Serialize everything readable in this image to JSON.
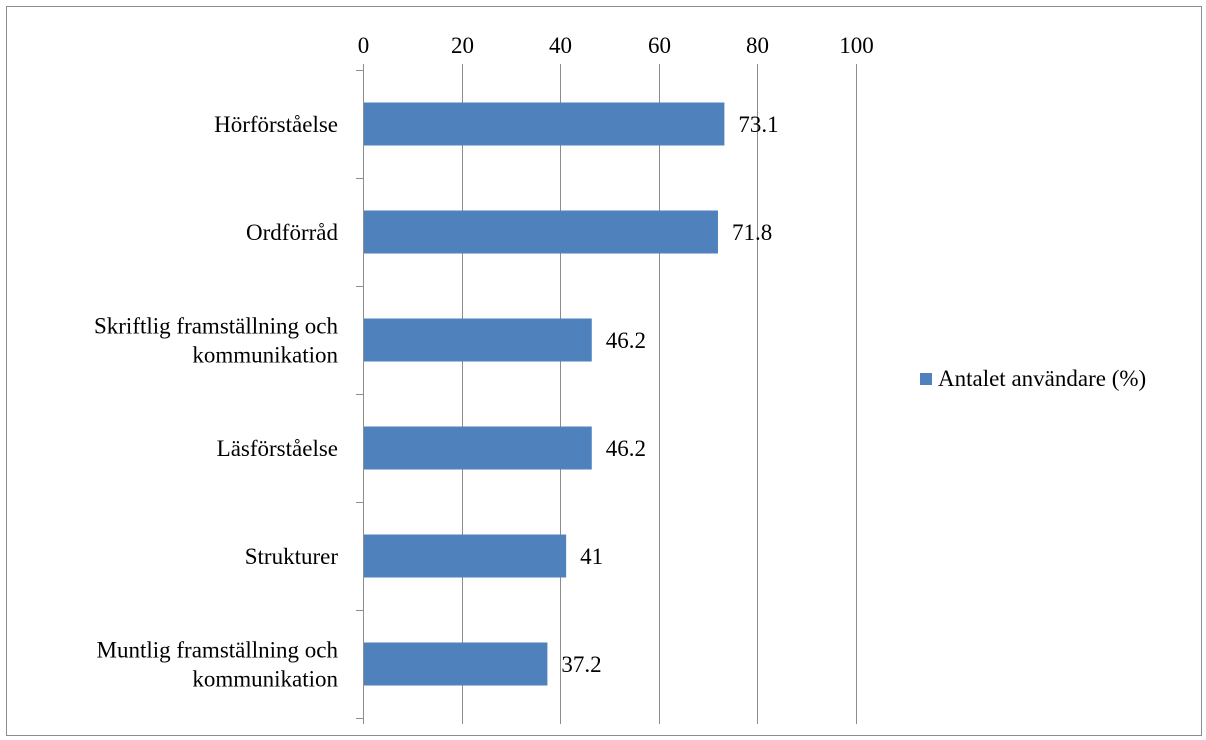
{
  "chart_data": {
    "type": "bar",
    "orientation": "horizontal",
    "categories": [
      "Hörförståelse",
      "Ordförråd",
      "Skriftlig framställning och kommunikation",
      "Läsförståelse",
      "Strukturer",
      "Muntlig framställning och kommunikation"
    ],
    "category_lines": [
      [
        "Hörförståelse"
      ],
      [
        "Ordförråd"
      ],
      [
        "Skriftlig framställning och",
        "kommunikation"
      ],
      [
        "Läsförståelse"
      ],
      [
        "Strukturer"
      ],
      [
        "Muntlig framställning och",
        "kommunikation"
      ]
    ],
    "series": [
      {
        "name": "Antalet användare (%)",
        "values": [
          73.1,
          71.8,
          46.2,
          46.2,
          41,
          37.2
        ],
        "labels": [
          "73.1",
          "71.8",
          "46.2",
          "46.2",
          "41",
          "37.2"
        ],
        "color": "#4f81bd"
      }
    ],
    "xlim": [
      0,
      100
    ],
    "xticks": [
      0,
      20,
      40,
      60,
      80,
      100
    ],
    "x_axis_position": "top",
    "grid": true,
    "legend": "right"
  }
}
